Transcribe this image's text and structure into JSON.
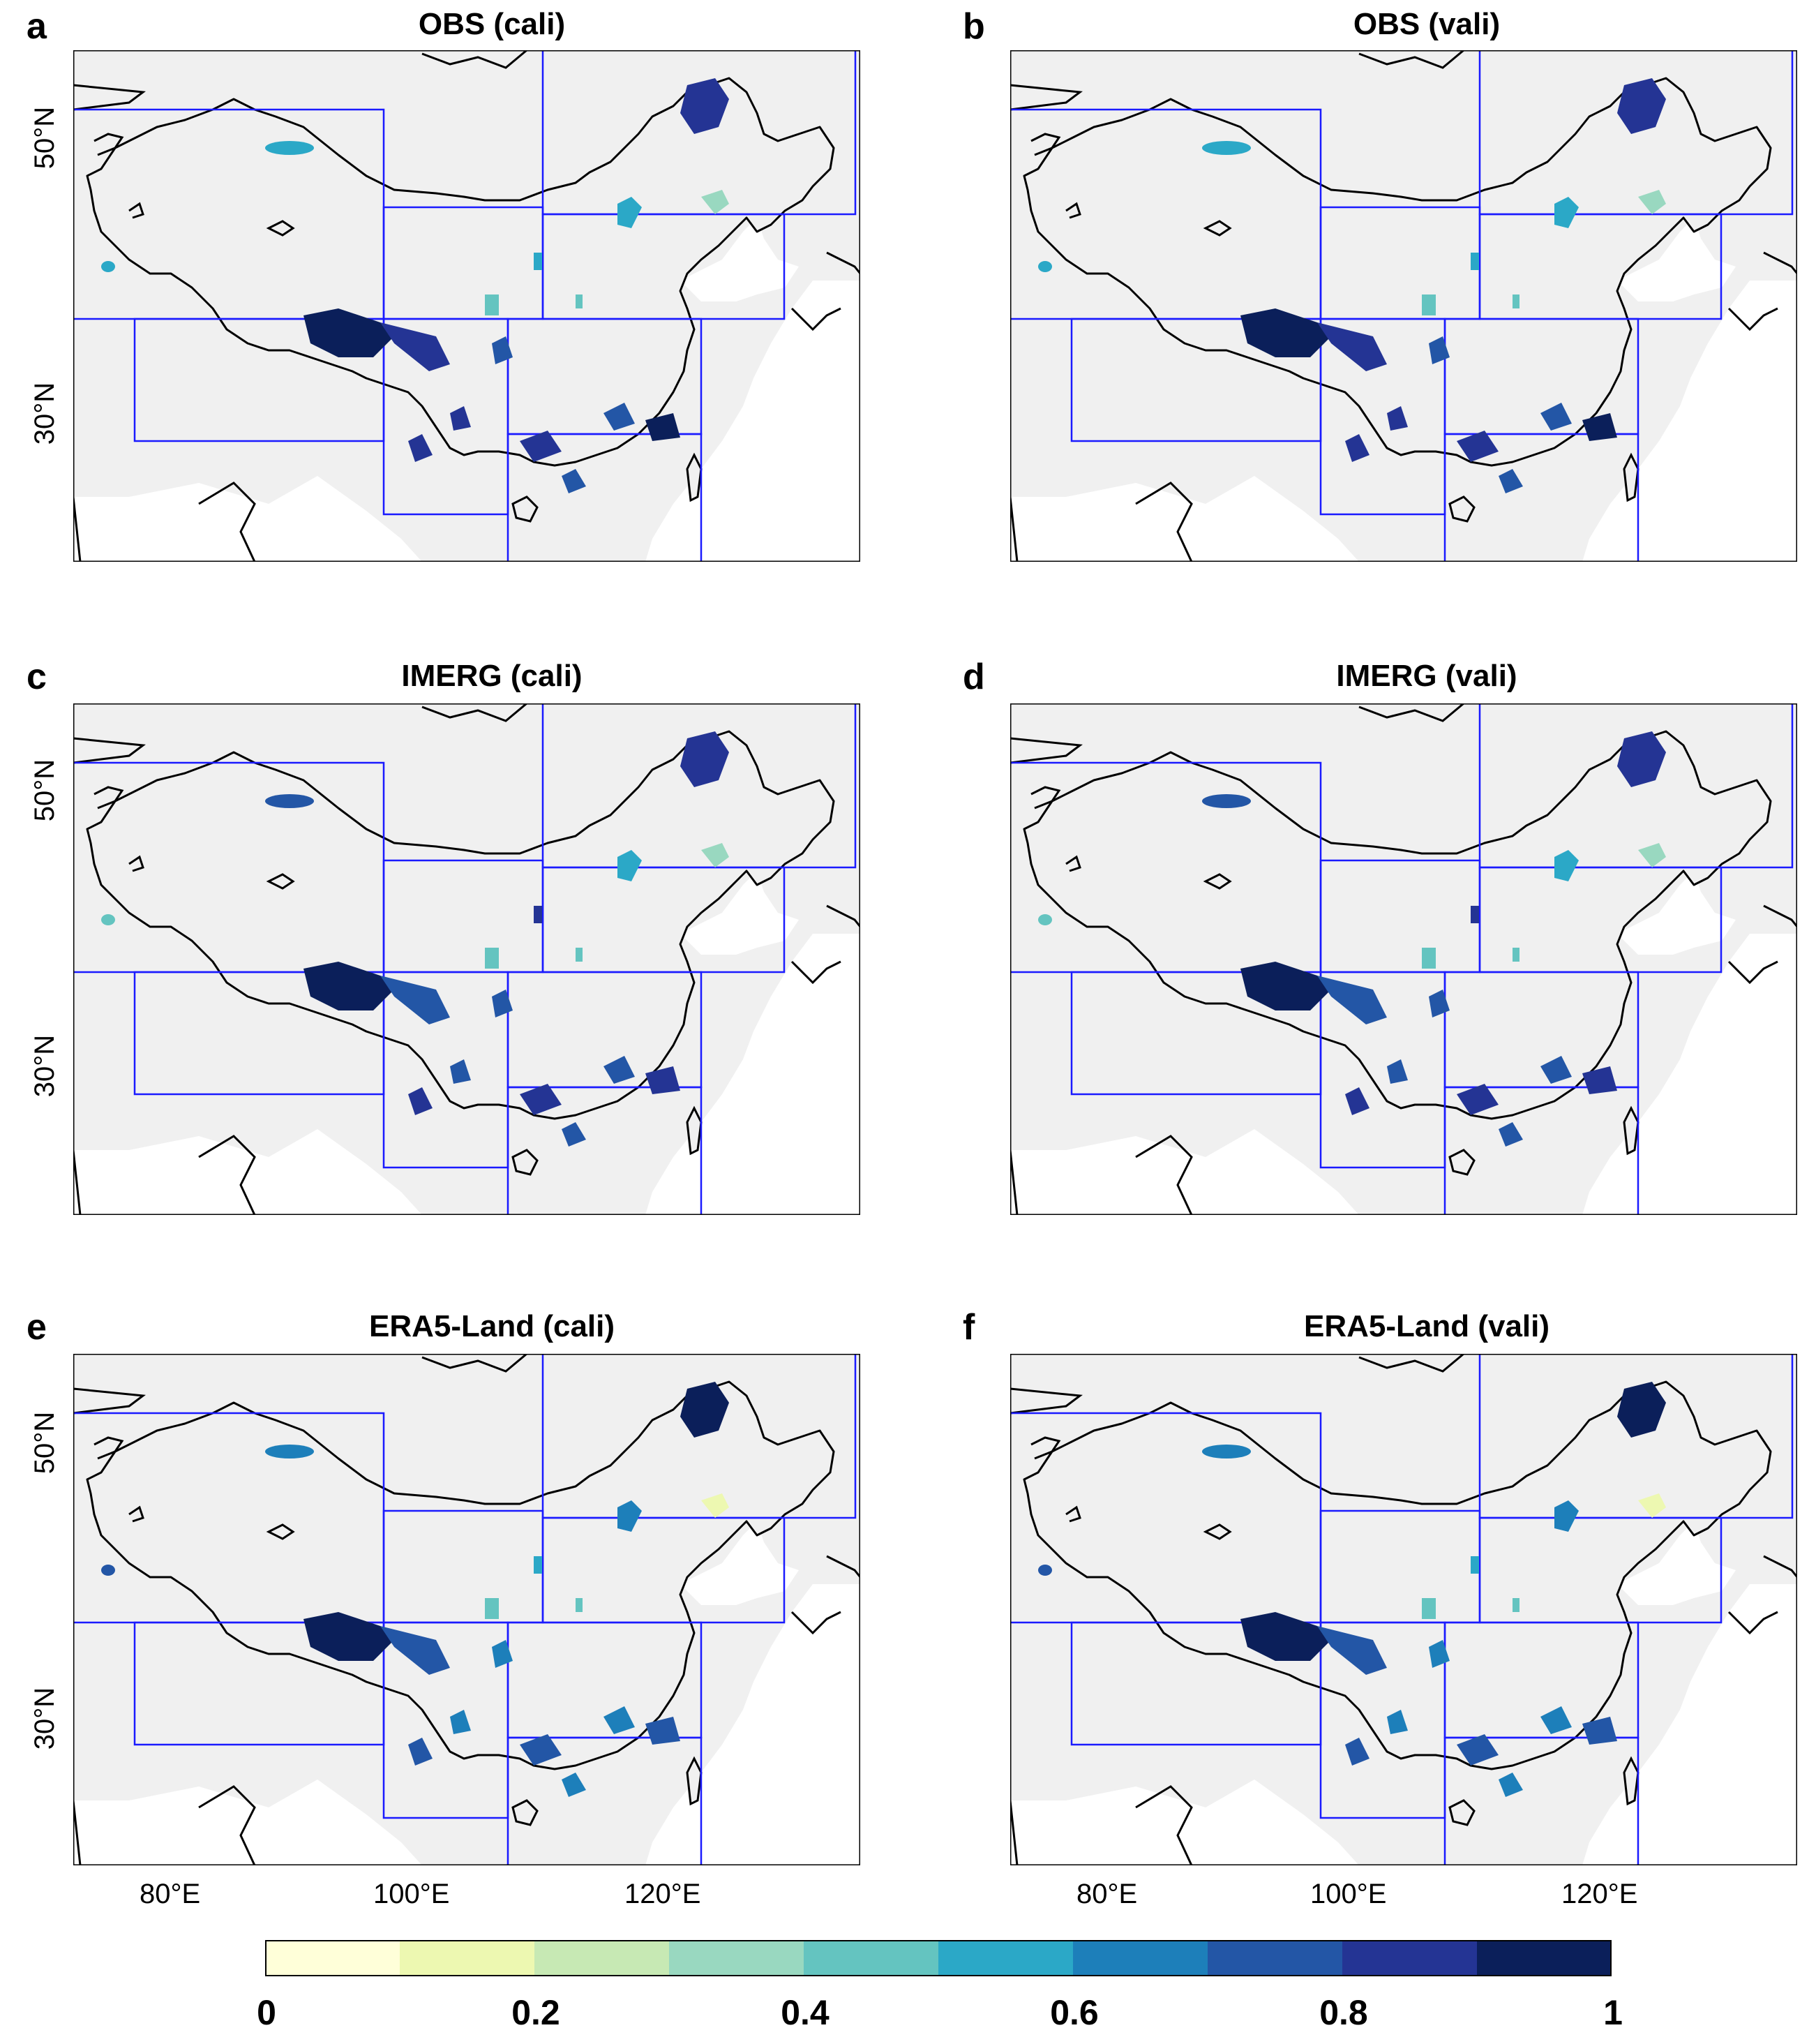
{
  "panels": [
    {
      "letter": "a",
      "title": "OBS (cali)"
    },
    {
      "letter": "b",
      "title": "OBS (vali)"
    },
    {
      "letter": "c",
      "title": "IMERG (cali)"
    },
    {
      "letter": "d",
      "title": "IMERG (vali)"
    },
    {
      "letter": "e",
      "title": "ERA5-Land (cali)"
    },
    {
      "letter": "f",
      "title": "ERA5-Land (vali)"
    }
  ],
  "axes": {
    "lat_ticks": [
      "50°N",
      "30°N"
    ],
    "lon_ticks": [
      "80°E",
      "100°E",
      "120°E"
    ]
  },
  "colorbar": {
    "ticks": [
      "0",
      "0.2",
      "0.4",
      "0.6",
      "0.8",
      "1"
    ],
    "colors": [
      "#ffffd9",
      "#edf8b1",
      "#c7e9b4",
      "#99d8c0",
      "#64c4c0",
      "#2ba8c7",
      "#1d7fba",
      "#2356a6",
      "#243494",
      "#0b1f5a"
    ]
  },
  "colors": {
    "land": "#f0f0f0",
    "region_box": "#1a1aff",
    "coast": "#000000"
  }
}
